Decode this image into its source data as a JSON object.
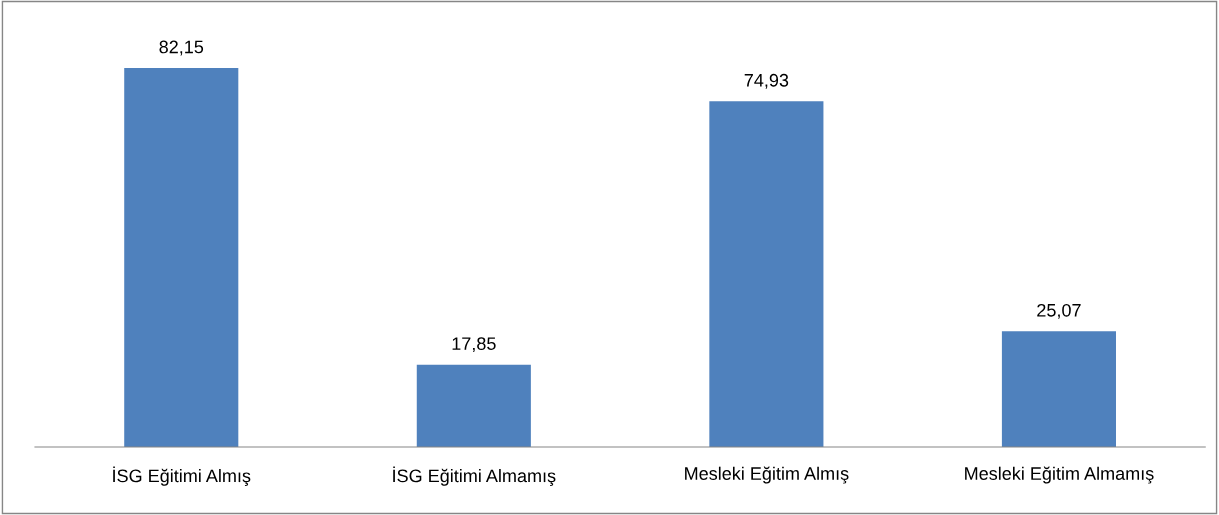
{
  "chart_data": {
    "type": "bar",
    "categories": [
      "İSG Eğitimi Almış",
      "İSG Eğitimi Almamış",
      "Mesleki Eğitim Almış",
      "Mesleki Eğitim Almamış"
    ],
    "values": [
      82.15,
      17.85,
      74.93,
      25.07
    ],
    "value_labels": [
      "82,15",
      "17,85",
      "74,93",
      "25,07"
    ],
    "color": "#4f81bd"
  }
}
